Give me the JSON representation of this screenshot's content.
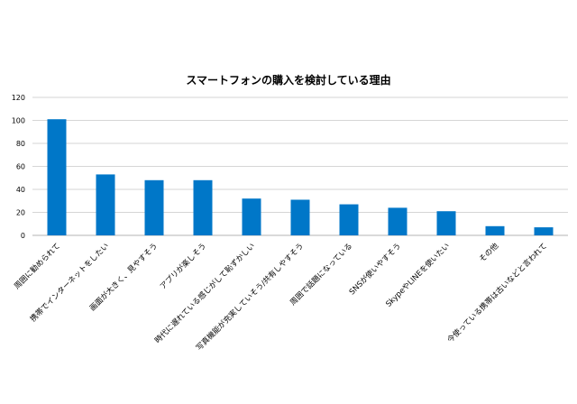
{
  "chart_data": {
    "type": "bar",
    "title": "スマートフォンの購入を検討している理由",
    "xlabel": "",
    "ylabel": "",
    "ylim": [
      0,
      120
    ],
    "yticks": [
      0,
      20,
      40,
      60,
      80,
      100,
      120
    ],
    "grid": true,
    "color": "#0077c8",
    "categories": [
      "周囲に勧められて",
      "携帯でインターネットをしたい",
      "画面が大きく、見やすそう",
      "アプリが楽しそう",
      "時代に遅れている感じがして恥ずかしい",
      "写真機能が充実していそう/共有しやすそう",
      "周囲で話題になっている",
      "SNSが使いやすそう",
      "SkypeやLINEを使いたい",
      "その他",
      "今使っている携帯は古いなどと言われて"
    ],
    "values": [
      101,
      53,
      48,
      48,
      32,
      31,
      27,
      24,
      21,
      8,
      7
    ]
  }
}
